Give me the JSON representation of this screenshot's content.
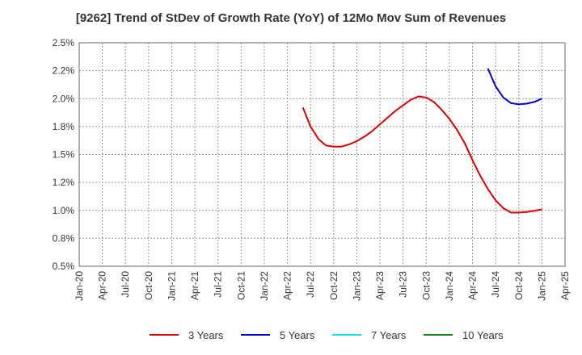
{
  "chart_data": {
    "type": "line",
    "title": "[9262]  Trend of StDev of Growth Rate (YoY) of 12Mo Mov Sum of Revenues",
    "xlabel": "",
    "ylabel": "",
    "ylim": [
      0.5,
      2.5
    ],
    "yticks": [
      0.5,
      0.75,
      1.0,
      1.25,
      1.5,
      1.75,
      2.0,
      2.25,
      2.5
    ],
    "ytick_labels": [
      "0.5%",
      "0.8%",
      "1.0%",
      "1.2%",
      "1.5%",
      "1.8%",
      "2.0%",
      "2.2%",
      "2.5%"
    ],
    "x_start": "Jan-20",
    "x_ticks": [
      "Jan-20",
      "Apr-20",
      "Jul-20",
      "Oct-20",
      "Jan-21",
      "Apr-21",
      "Jul-21",
      "Oct-21",
      "Jan-22",
      "Apr-22",
      "Jul-22",
      "Oct-22",
      "Jan-23",
      "Apr-23",
      "Jul-23",
      "Oct-23",
      "Jan-24",
      "Apr-24",
      "Jul-24",
      "Oct-24",
      "Jan-25",
      "Apr-25"
    ],
    "grid": true,
    "legend_position": "bottom",
    "series": [
      {
        "name": "3 Years",
        "color": "#dd0000",
        "x": [
          "Jun-22",
          "Jul-22",
          "Aug-22",
          "Sep-22",
          "Oct-22",
          "Nov-22",
          "Dec-22",
          "Jan-23",
          "Feb-23",
          "Mar-23",
          "Apr-23",
          "May-23",
          "Jun-23",
          "Jul-23",
          "Aug-23",
          "Sep-23",
          "Oct-23",
          "Nov-23",
          "Dec-23",
          "Jan-24",
          "Feb-24",
          "Mar-24",
          "Apr-24",
          "May-24",
          "Jun-24",
          "Jul-24",
          "Aug-24",
          "Sep-24",
          "Oct-24",
          "Nov-24",
          "Dec-24",
          "Jan-25"
        ],
        "values": [
          1.92,
          1.75,
          1.64,
          1.58,
          1.57,
          1.57,
          1.59,
          1.62,
          1.66,
          1.71,
          1.77,
          1.83,
          1.89,
          1.94,
          1.99,
          2.02,
          2.01,
          1.97,
          1.9,
          1.82,
          1.72,
          1.6,
          1.45,
          1.31,
          1.19,
          1.09,
          1.02,
          0.98,
          0.98,
          0.985,
          0.995,
          1.01
        ]
      },
      {
        "name": "5 Years",
        "color": "#0000cc",
        "x": [
          "Jun-24",
          "Jul-24",
          "Aug-24",
          "Sep-24",
          "Oct-24",
          "Nov-24",
          "Dec-24",
          "Jan-25"
        ],
        "values": [
          2.27,
          2.11,
          2.01,
          1.96,
          1.95,
          1.955,
          1.97,
          2.0
        ]
      },
      {
        "name": "7 Years",
        "color": "#00e5ee",
        "x": [],
        "values": []
      },
      {
        "name": "10 Years",
        "color": "#118811",
        "x": [],
        "values": []
      }
    ]
  }
}
